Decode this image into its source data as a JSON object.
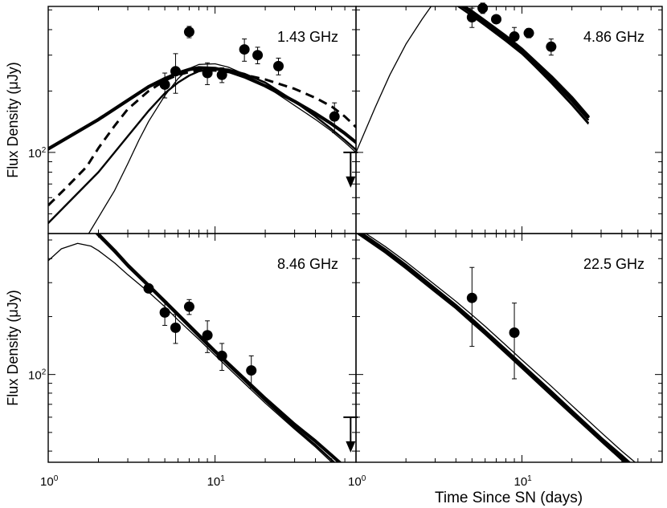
{
  "chart_data": {
    "type": "scatter",
    "title": "",
    "x_scale": "log",
    "y_scale": "log",
    "xlim": [
      1,
      70
    ],
    "shared_xlabel": "Time Since SN  (days)",
    "shared_ylabel": "Flux Density  (μJy)",
    "x_tick_labels": [
      {
        "value": 1,
        "base": "10",
        "exp": "0"
      },
      {
        "value": 10,
        "base": "10",
        "exp": "1"
      }
    ],
    "y_tick_label": {
      "value": 100,
      "base": "10",
      "exp": "2"
    },
    "panels": [
      {
        "label": "1.43 GHz",
        "ylim": [
          40,
          520
        ],
        "ylabel": "Flux Density  (μJy)",
        "points": [
          {
            "t": 5.0,
            "flux": 215,
            "err": 30
          },
          {
            "t": 5.8,
            "flux": 250,
            "err": 55
          },
          {
            "t": 7.0,
            "flux": 390,
            "err": 25
          },
          {
            "t": 9.0,
            "flux": 245,
            "err": 30
          },
          {
            "t": 11.0,
            "flux": 240,
            "err": 20
          },
          {
            "t": 15.0,
            "flux": 320,
            "err": 40
          },
          {
            "t": 18.0,
            "flux": 300,
            "err": 28
          },
          {
            "t": 24.0,
            "flux": 265,
            "err": 25
          },
          {
            "t": 52.0,
            "flux": 150,
            "err": 25
          }
        ],
        "upper_limits": [
          {
            "t": 65.0,
            "flux": 100
          }
        ],
        "models": [
          {
            "style": "thick",
            "t": [
              1,
              2,
              3,
              4,
              5,
              6,
              7,
              8,
              10,
              12,
              15,
              20,
              30,
              40,
              50,
              60,
              70
            ],
            "flux": [
              104,
              145,
              180,
              210,
              230,
              245,
              255,
              260,
              258,
              250,
              235,
              212,
              178,
              155,
              138,
              124,
              112
            ]
          },
          {
            "style": "dashed",
            "t": [
              1,
              1.3,
              1.7,
              2,
              2.5,
              3,
              4,
              5,
              6,
              7,
              8,
              10,
              12,
              15,
              20,
              30,
              40,
              50,
              60,
              70
            ],
            "flux": [
              55,
              68,
              85,
              105,
              135,
              163,
              200,
              225,
              240,
              248,
              252,
              252,
              248,
              240,
              228,
              205,
              185,
              168,
              150,
              133
            ]
          },
          {
            "style": "medium",
            "t": [
              1,
              2,
              3,
              4,
              5,
              6,
              7,
              8,
              10,
              12,
              15,
              20,
              30,
              40,
              50,
              60,
              70
            ],
            "flux": [
              45,
              80,
              120,
              160,
              195,
              220,
              238,
              250,
              258,
              255,
              243,
              220,
              178,
              150,
              130,
              115,
              103
            ]
          },
          {
            "style": "thin",
            "t": [
              1.75,
              2,
              2.5,
              3,
              3.5,
              4,
              5,
              6,
              7,
              8,
              10,
              12,
              15,
              20,
              30,
              40,
              50,
              60,
              70
            ],
            "flux": [
              40,
              48,
              65,
              88,
              115,
              142,
              190,
              230,
              258,
              270,
              272,
              262,
              242,
              212,
              170,
              145,
              127,
              112,
              100
            ]
          }
        ]
      },
      {
        "label": "4.86 GHz",
        "ylim": [
          40,
          520
        ],
        "ylabel": "",
        "points": [
          {
            "t": 5.0,
            "flux": 460,
            "err": 50
          },
          {
            "t": 5.8,
            "flux": 510,
            "err": 30
          },
          {
            "t": 7.0,
            "flux": 450,
            "err": 20
          },
          {
            "t": 9.0,
            "flux": 370,
            "err": 40
          },
          {
            "t": 11.0,
            "flux": 385,
            "err": 20
          },
          {
            "t": 15.0,
            "flux": 330,
            "err": 30
          }
        ],
        "upper_limits": [],
        "models": [
          {
            "style": "thick",
            "t": [
              1,
              1.3,
              1.6,
              1.8,
              2.1,
              2.6,
              3.2,
              4,
              5,
              6,
              8,
              10,
              15,
              20,
              25
            ],
            "flux": [
              580,
              650,
              690,
              695,
              680,
              645,
              600,
              550,
              490,
              440,
              370,
              320,
              235,
              185,
              150
            ]
          },
          {
            "style": "medium",
            "t": [
              3,
              4,
              5,
              6,
              8,
              10,
              15,
              20,
              25
            ],
            "flux": [
              620,
              545,
              480,
              430,
              360,
              312,
              228,
              178,
              145
            ]
          },
          {
            "style": "medium",
            "t": [
              3,
              4,
              5,
              6,
              8,
              10,
              15,
              20,
              25
            ],
            "flux": [
              600,
              530,
              468,
              420,
              352,
              305,
              222,
              172,
              140
            ]
          },
          {
            "style": "thin",
            "t": [
              1,
              1.3,
              1.6,
              2,
              2.5,
              3,
              4,
              5,
              6,
              8,
              10,
              15,
              20,
              25
            ],
            "flux": [
              100,
              165,
              240,
              340,
              450,
              555,
              540,
              480,
              425,
              355,
              305,
              218,
              170,
              138
            ]
          }
        ]
      },
      {
        "label": "8.46 GHz",
        "ylim": [
          35,
          540
        ],
        "ylabel": "Flux Density  (μJy)",
        "points": [
          {
            "t": 4.0,
            "flux": 280,
            "err": 10
          },
          {
            "t": 5.0,
            "flux": 210,
            "err": 30
          },
          {
            "t": 5.8,
            "flux": 175,
            "err": 30
          },
          {
            "t": 7.0,
            "flux": 225,
            "err": 20
          },
          {
            "t": 9.0,
            "flux": 160,
            "err": 30
          },
          {
            "t": 11.0,
            "flux": 125,
            "err": 20
          },
          {
            "t": 16.5,
            "flux": 105,
            "err": 20
          }
        ],
        "upper_limits": [
          {
            "t": 65.0,
            "flux": 60
          }
        ],
        "models": [
          {
            "style": "thick",
            "t": [
              1.9,
              2.5,
              3,
              4,
              5,
              6,
              8,
              10,
              15,
              20,
              30,
              40,
              50,
              60,
              70
            ],
            "flux": [
              560,
              440,
              370,
              290,
              240,
              205,
              160,
              132,
              95,
              75,
              55,
              45,
              38,
              33,
              29
            ]
          },
          {
            "style": "medium",
            "t": [
              1.9,
              2.5,
              3,
              4,
              5,
              6,
              8,
              10,
              15,
              20,
              30,
              40,
              50,
              60,
              70
            ],
            "flux": [
              550,
              432,
              364,
              286,
              236,
              202,
              157,
              130,
              93,
              73,
              53,
              43,
              36,
              31,
              27
            ]
          },
          {
            "style": "thin",
            "t": [
              1,
              1.2,
              1.5,
              1.8,
              2,
              2.5,
              3,
              4,
              5,
              6,
              8,
              10,
              15,
              20,
              30,
              40,
              50,
              60,
              70
            ],
            "flux": [
              390,
              450,
              480,
              465,
              440,
              380,
              330,
              268,
              225,
              192,
              152,
              126,
              90,
              71,
              52,
              42,
              35,
              31,
              27
            ]
          }
        ]
      },
      {
        "label": "22.5 GHz",
        "ylim": [
          35,
          540
        ],
        "ylabel": "",
        "points": [
          {
            "t": 5.0,
            "flux": 250,
            "err": 110
          },
          {
            "t": 9.0,
            "flux": 165,
            "err": 70
          }
        ],
        "upper_limits": [],
        "models": [
          {
            "style": "thick",
            "t": [
              1,
              1.5,
              2,
              3,
              4,
              5,
              6,
              8,
              10,
              15,
              20,
              30,
              40,
              50,
              60,
              70
            ],
            "flux": [
              560,
              440,
              365,
              275,
              225,
              190,
              165,
              132,
              110,
              80,
              63,
              46,
              37,
              31,
              27,
              24
            ]
          },
          {
            "style": "medium",
            "t": [
              1,
              1.5,
              2,
              3,
              4,
              5,
              6,
              8,
              10,
              15,
              20,
              30,
              40,
              50,
              60,
              70
            ],
            "flux": [
              570,
              448,
              372,
              281,
              230,
              195,
              169,
              135,
              113,
              82,
              65,
              47,
              38,
              32,
              28,
              25
            ]
          },
          {
            "style": "medium",
            "t": [
              1,
              1.5,
              2,
              3,
              4,
              5,
              6,
              8,
              10,
              15,
              20,
              30,
              40,
              50,
              60,
              70
            ],
            "flux": [
              548,
              430,
              356,
              269,
              221,
              186,
              162,
              129,
              108,
              78,
              62,
              45,
              36,
              30,
              26,
              23
            ]
          },
          {
            "style": "thin",
            "t": [
              1,
              1.5,
              2,
              3,
              4,
              5,
              6,
              8,
              10,
              15,
              20,
              30,
              40,
              50,
              60,
              70
            ],
            "flux": [
              585,
              462,
              385,
              292,
              240,
              204,
              178,
              142,
              119,
              87,
              69,
              50,
              40,
              34,
              30,
              26
            ]
          }
        ]
      }
    ]
  }
}
